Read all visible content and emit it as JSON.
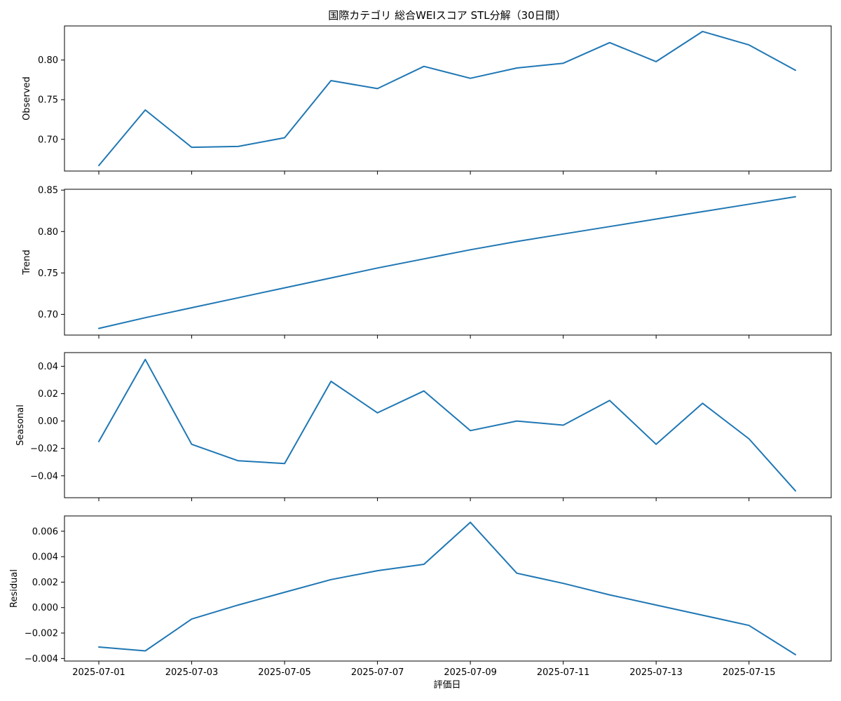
{
  "chart_data": {
    "type": "line",
    "title": "国際カテゴリ 総合WEIスコア STL分解（30日間）",
    "xlabel": "評価日",
    "x": [
      "2025-07-01",
      "2025-07-02",
      "2025-07-03",
      "2025-07-04",
      "2025-07-05",
      "2025-07-06",
      "2025-07-07",
      "2025-07-08",
      "2025-07-09",
      "2025-07-10",
      "2025-07-11",
      "2025-07-12",
      "2025-07-13",
      "2025-07-14",
      "2025-07-15",
      "2025-07-16"
    ],
    "x_tick_labels": [
      "2025-07-01",
      "2025-07-03",
      "2025-07-05",
      "2025-07-07",
      "2025-07-09",
      "2025-07-11",
      "2025-07-13",
      "2025-07-15"
    ],
    "line_color": "#1f77b4",
    "panels": [
      {
        "ylabel": "Observed",
        "values": [
          0.667,
          0.737,
          0.69,
          0.691,
          0.702,
          0.774,
          0.764,
          0.792,
          0.777,
          0.79,
          0.796,
          0.822,
          0.798,
          0.836,
          0.819,
          0.787
        ],
        "ylim": [
          0.66,
          0.843
        ],
        "yticks": [
          0.7,
          0.75,
          0.8
        ],
        "ytick_labels": [
          "0.70",
          "0.75",
          "0.80"
        ]
      },
      {
        "ylabel": "Trend",
        "values": [
          0.683,
          0.696,
          0.708,
          0.72,
          0.732,
          0.744,
          0.756,
          0.767,
          0.778,
          0.788,
          0.797,
          0.806,
          0.815,
          0.824,
          0.833,
          0.842
        ],
        "ylim": [
          0.675,
          0.851
        ],
        "yticks": [
          0.7,
          0.75,
          0.8,
          0.85
        ],
        "ytick_labels": [
          "0.70",
          "0.75",
          "0.80",
          "0.85"
        ]
      },
      {
        "ylabel": "Seasonal",
        "values": [
          -0.015,
          0.045,
          -0.017,
          -0.029,
          -0.031,
          0.029,
          0.006,
          0.022,
          -0.007,
          0.0,
          -0.003,
          0.015,
          -0.017,
          0.013,
          -0.013,
          -0.051
        ],
        "ylim": [
          -0.056,
          0.05
        ],
        "yticks": [
          -0.04,
          -0.02,
          0.0,
          0.02,
          0.04
        ],
        "ytick_labels": [
          "−0.04",
          "−0.02",
          "0.00",
          "0.02",
          "0.04"
        ]
      },
      {
        "ylabel": "Residual",
        "values": [
          -0.0031,
          -0.0034,
          -0.0009,
          0.0002,
          0.0012,
          0.0022,
          0.0029,
          0.0034,
          0.0067,
          0.0027,
          0.0019,
          0.001,
          0.0002,
          -0.0006,
          -0.0014,
          -0.0037
        ],
        "ylim": [
          -0.0042,
          0.0072
        ],
        "yticks": [
          -0.004,
          -0.002,
          0.0,
          0.002,
          0.004,
          0.006
        ],
        "ytick_labels": [
          "−0.004",
          "−0.002",
          "0.000",
          "0.002",
          "0.004",
          "0.006"
        ]
      }
    ]
  }
}
